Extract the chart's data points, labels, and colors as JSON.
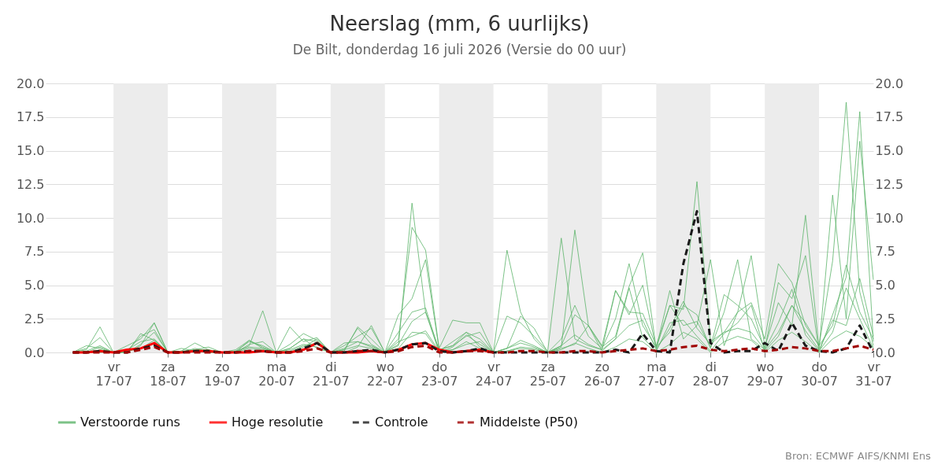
{
  "chart_data": {
    "type": "line",
    "title": "Neerslag (mm, 6 uurlijks)",
    "subtitle": "De Bilt, donderdag 16 juli 2026 (Versie do 00 uur)",
    "annotations": [
      "Bron: ECMWF AIFS/KNMI Ens"
    ],
    "x": [
      "2026-07-16T06:00",
      "2026-07-16T12:00",
      "2026-07-16T18:00",
      "2026-07-17T00:00",
      "2026-07-17T06:00",
      "2026-07-17T12:00",
      "2026-07-17T18:00",
      "2026-07-18T00:00",
      "2026-07-18T06:00",
      "2026-07-18T12:00",
      "2026-07-18T18:00",
      "2026-07-19T00:00",
      "2026-07-19T06:00",
      "2026-07-19T12:00",
      "2026-07-19T18:00",
      "2026-07-20T00:00",
      "2026-07-20T06:00",
      "2026-07-20T12:00",
      "2026-07-20T18:00",
      "2026-07-21T00:00",
      "2026-07-21T06:00",
      "2026-07-21T12:00",
      "2026-07-21T18:00",
      "2026-07-22T00:00",
      "2026-07-22T06:00",
      "2026-07-22T12:00",
      "2026-07-22T18:00",
      "2026-07-23T00:00",
      "2026-07-23T06:00",
      "2026-07-23T12:00",
      "2026-07-23T18:00",
      "2026-07-24T00:00",
      "2026-07-24T06:00",
      "2026-07-24T12:00",
      "2026-07-24T18:00",
      "2026-07-25T00:00",
      "2026-07-25T06:00",
      "2026-07-25T12:00",
      "2026-07-25T18:00",
      "2026-07-26T00:00",
      "2026-07-26T06:00",
      "2026-07-26T12:00",
      "2026-07-26T18:00",
      "2026-07-27T00:00",
      "2026-07-27T06:00",
      "2026-07-27T12:00",
      "2026-07-27T18:00",
      "2026-07-28T00:00",
      "2026-07-28T06:00",
      "2026-07-28T12:00",
      "2026-07-28T18:00",
      "2026-07-29T00:00",
      "2026-07-29T06:00",
      "2026-07-29T12:00",
      "2026-07-29T18:00",
      "2026-07-30T00:00",
      "2026-07-30T06:00",
      "2026-07-30T12:00",
      "2026-07-30T18:00",
      "2026-07-31T00:00"
    ],
    "series": [
      {
        "name": "Verstoorde runs",
        "color": "#5cb46a",
        "values": [
          0,
          0.2,
          1.9,
          0,
          0,
          0.5,
          2.2,
          0,
          0,
          0.3,
          0.1,
          0,
          0,
          0.5,
          3.1,
          0,
          0,
          0.4,
          1.0,
          0,
          0,
          0.4,
          2.0,
          0,
          0.5,
          11.1,
          3.0,
          0.2,
          0.5,
          1.5,
          0.4,
          0,
          0.3,
          2.7,
          1.8,
          0,
          1.0,
          3.5,
          1.2,
          0.3,
          2.5,
          6.6,
          2.0,
          0.4,
          1.5,
          3.5,
          2.8,
          0.3,
          3.0,
          6.9,
          1.0,
          0.2,
          1.5,
          3.5,
          2.2,
          0.5,
          6.8,
          18.6,
          4.5,
          0.5
        ]
      },
      {
        "color": "#5cb46a",
        "values": [
          0,
          0.5,
          0.3,
          0,
          0,
          1.4,
          0.9,
          0,
          0.1,
          0.7,
          0.2,
          0,
          0,
          0.9,
          0.4,
          0,
          1.9,
          0.8,
          1.1,
          0,
          0.1,
          1.9,
          1.0,
          0,
          1.0,
          9.3,
          7.6,
          0.3,
          2.4,
          2.2,
          2.2,
          0,
          2.7,
          2.2,
          1.2,
          0.1,
          8.5,
          1.0,
          0.5,
          0.2,
          4.6,
          3.0,
          2.9,
          0.5,
          3.5,
          2.0,
          2.3,
          0.4,
          4.3,
          3.5,
          2.5,
          0.3,
          5.2,
          4.0,
          7.2,
          0,
          2.8,
          5.6,
          17.9,
          0.8
        ]
      },
      {
        "color": "#5cb46a",
        "values": [
          0,
          0.1,
          0.5,
          0,
          0.1,
          1.2,
          1.7,
          0,
          0.1,
          0.2,
          0.4,
          0,
          0.1,
          0.8,
          0.5,
          0,
          0.3,
          1.0,
          0.8,
          0,
          0.2,
          1.8,
          0.6,
          0,
          2.8,
          4.0,
          6.9,
          0.2,
          0.5,
          1.2,
          1.5,
          0,
          0.3,
          0.9,
          0.5,
          0,
          0.4,
          9.1,
          2.0,
          0.4,
          1.2,
          4.9,
          7.4,
          0.3,
          3.5,
          3.2,
          12.7,
          0.8,
          1.5,
          3.0,
          7.2,
          0.4,
          3.7,
          2.0,
          10.2,
          0.3,
          11.7,
          2.5,
          15.7,
          5.4
        ]
      },
      {
        "color": "#5cb46a",
        "values": [
          0,
          0.3,
          1.1,
          0,
          0.5,
          1.0,
          2.2,
          0,
          0.3,
          0.1,
          0,
          0,
          0.2,
          0.9,
          0.3,
          0,
          0.6,
          1.4,
          0.9,
          0,
          0.5,
          1.2,
          1.8,
          0,
          1.5,
          3.0,
          3.3,
          0.1,
          0.8,
          1.5,
          1.0,
          0,
          7.6,
          3.0,
          1.0,
          0,
          0.5,
          2.8,
          2.0,
          0.5,
          4.6,
          2.8,
          5.0,
          0.3,
          4.6,
          1.0,
          2.0,
          6.9,
          0.5,
          3.0,
          3.7,
          1.0,
          6.6,
          5.2,
          2.0,
          0.5,
          2.0,
          6.5,
          3.0,
          1.0
        ]
      },
      {
        "color": "#5cb46a",
        "values": [
          0,
          0,
          0.4,
          0,
          0.2,
          0.8,
          1.0,
          0,
          0,
          0.2,
          0.2,
          0,
          0,
          0.3,
          0.2,
          0,
          0.2,
          0.6,
          0.4,
          0,
          0.3,
          0.8,
          0.5,
          0,
          0.8,
          1.2,
          1.6,
          0.1,
          0.2,
          0.6,
          0.8,
          0,
          0.3,
          0.7,
          0.4,
          0,
          0.5,
          1.3,
          0.6,
          0.2,
          1.0,
          2.0,
          2.4,
          0.2,
          1.8,
          3.8,
          1.8,
          0.6,
          1.5,
          1.8,
          1.5,
          0.2,
          2.2,
          4.7,
          1.3,
          0.1,
          1.5,
          4.8,
          2.5,
          0.3
        ]
      },
      {
        "color": "#5cb46a",
        "values": [
          0,
          0,
          0.2,
          0,
          0,
          0.6,
          1.5,
          0,
          0.1,
          0,
          0.1,
          0,
          0,
          0.6,
          0.8,
          0,
          0.3,
          1.0,
          0.3,
          0,
          0.7,
          0.8,
          0.4,
          0,
          0.6,
          2.3,
          3.0,
          0,
          0.4,
          1.3,
          0.6,
          0,
          0.1,
          0.4,
          0.3,
          0,
          0.3,
          0.6,
          2.0,
          0.1,
          1.0,
          4.8,
          1.1,
          0.1,
          2.2,
          2.4,
          1.2,
          0.1,
          1.4,
          2.2,
          3.5,
          0.1,
          1.2,
          3.5,
          1.6,
          0.2,
          2.4,
          2.0,
          5.5,
          1.2
        ]
      },
      {
        "color": "#5cb46a",
        "values": [
          0,
          0,
          0,
          0,
          0.1,
          0.3,
          0.9,
          0,
          0,
          0.1,
          0,
          0,
          0.1,
          0.4,
          0.3,
          0,
          0.1,
          0.5,
          0.7,
          0,
          0.2,
          0.5,
          0.3,
          0,
          0.3,
          1.5,
          1.4,
          0,
          0.2,
          0.8,
          0.3,
          0,
          0.1,
          0.3,
          0.2,
          0,
          0.2,
          0.7,
          0.3,
          0,
          0.4,
          1.0,
          0.8,
          0,
          0.6,
          1.5,
          1.0,
          0,
          0.8,
          1.2,
          0.9,
          0,
          0.9,
          1.5,
          0.8,
          0,
          1.0,
          1.6,
          1.2,
          0.4
        ]
      },
      {
        "name": "Hoge resolutie",
        "color": "#ff0000",
        "values": [
          0,
          0,
          0.1,
          0,
          0.2,
          0.3,
          0.7,
          0,
          0,
          0.1,
          0.1,
          0,
          0,
          0,
          0.1,
          0,
          0,
          0.2,
          0.7,
          0,
          0,
          0,
          0.1,
          0,
          0.2,
          0.6,
          0.7,
          0.2,
          0,
          0.1,
          0.2,
          0,
          null,
          null,
          null,
          null,
          null,
          null,
          null,
          null,
          null,
          null,
          null,
          null,
          null,
          null,
          null,
          null,
          null,
          null,
          null,
          null,
          null,
          null,
          null,
          null,
          null,
          null,
          null,
          null
        ]
      },
      {
        "name": "Controle",
        "color": "#1a1a1a",
        "line_style": "dashed",
        "values": [
          0,
          0,
          0.1,
          0,
          0,
          0.3,
          0.5,
          0,
          0,
          0.1,
          0.1,
          0,
          0,
          0.1,
          0.1,
          0,
          0,
          0.3,
          0.7,
          0,
          0,
          0.1,
          0.2,
          0,
          0.2,
          0.6,
          0.7,
          0.1,
          0,
          0.1,
          0.3,
          0,
          0,
          0,
          0,
          0,
          0,
          0,
          0,
          0,
          0.2,
          0,
          1.4,
          0.1,
          0,
          6.6,
          10.5,
          0.7,
          0,
          0.1,
          0.1,
          0.7,
          0.1,
          2.2,
          0.5,
          0.1,
          0,
          0.3,
          2.0,
          0
        ]
      },
      {
        "name": "Middelste (P50)",
        "color": "#a00000",
        "line_style": "dashed",
        "values": [
          0,
          0,
          0,
          0,
          0,
          0.2,
          0.4,
          0,
          0,
          0,
          0,
          0,
          0,
          0.1,
          0.1,
          0,
          0,
          0.1,
          0.3,
          0,
          0,
          0.1,
          0.1,
          0,
          0.1,
          0.4,
          0.5,
          0,
          0,
          0.1,
          0.1,
          0,
          0,
          0.1,
          0.1,
          0,
          0,
          0.1,
          0.1,
          0,
          0.1,
          0.2,
          0.3,
          0.1,
          0.2,
          0.4,
          0.5,
          0.2,
          0.1,
          0.2,
          0.3,
          0.1,
          0.2,
          0.4,
          0.3,
          0.1,
          0.1,
          0.3,
          0.5,
          0.2
        ]
      }
    ],
    "xlim": [
      "2026-07-15T18:00",
      "2026-07-31T00:00"
    ],
    "xticks": [
      {
        "value": "2026-07-17",
        "label": "vr\n17-07"
      },
      {
        "value": "2026-07-18",
        "label": "za\n18-07"
      },
      {
        "value": "2026-07-19",
        "label": "zo\n19-07"
      },
      {
        "value": "2026-07-20",
        "label": "ma\n20-07"
      },
      {
        "value": "2026-07-21",
        "label": "di\n21-07"
      },
      {
        "value": "2026-07-22",
        "label": "wo\n22-07"
      },
      {
        "value": "2026-07-23",
        "label": "do\n23-07"
      },
      {
        "value": "2026-07-24",
        "label": "vr\n24-07"
      },
      {
        "value": "2026-07-25",
        "label": "za\n25-07"
      },
      {
        "value": "2026-07-26",
        "label": "zo\n26-07"
      },
      {
        "value": "2026-07-27",
        "label": "ma\n27-07"
      },
      {
        "value": "2026-07-28",
        "label": "di\n28-07"
      },
      {
        "value": "2026-07-29",
        "label": "wo\n29-07"
      },
      {
        "value": "2026-07-30",
        "label": "do\n30-07"
      },
      {
        "value": "2026-07-31",
        "label": "vr\n31-07"
      }
    ],
    "ylim": [
      0,
      20
    ],
    "yticks": [
      {
        "value": 0,
        "label": "0.0"
      },
      {
        "value": 2.5,
        "label": "2.5"
      },
      {
        "value": 5,
        "label": "5.0"
      },
      {
        "value": 7.5,
        "label": "7.5"
      },
      {
        "value": 10,
        "label": "10.0"
      },
      {
        "value": 12.5,
        "label": "12.5"
      },
      {
        "value": 15,
        "label": "15.0"
      },
      {
        "value": 17.5,
        "label": "17.5"
      },
      {
        "value": 20,
        "label": "20.0"
      }
    ],
    "y2lim": [
      0,
      20
    ],
    "y2ticks": [
      {
        "value": 0,
        "label": "0.0"
      },
      {
        "value": 2.5,
        "label": "2.5"
      },
      {
        "value": 5,
        "label": "5.0"
      },
      {
        "value": 7.5,
        "label": "7.5"
      },
      {
        "value": 10,
        "label": "10.0"
      },
      {
        "value": 12.5,
        "label": "12.5"
      },
      {
        "value": 15,
        "label": "15.0"
      },
      {
        "value": 17.5,
        "label": "17.5"
      },
      {
        "value": 20,
        "label": "20.0"
      }
    ],
    "bands": [
      {
        "axis": "x",
        "from": "2026-07-17",
        "to": "2026-07-18",
        "color": "#ececec"
      },
      {
        "axis": "x",
        "from": "2026-07-19",
        "to": "2026-07-20",
        "color": "#ececec"
      },
      {
        "axis": "x",
        "from": "2026-07-21",
        "to": "2026-07-22",
        "color": "#ececec"
      },
      {
        "axis": "x",
        "from": "2026-07-23",
        "to": "2026-07-24",
        "color": "#ececec"
      },
      {
        "axis": "x",
        "from": "2026-07-25",
        "to": "2026-07-26",
        "color": "#ececec"
      },
      {
        "axis": "x",
        "from": "2026-07-27",
        "to": "2026-07-28",
        "color": "#ececec"
      },
      {
        "axis": "x",
        "from": "2026-07-29",
        "to": "2026-07-30",
        "color": "#ececec"
      }
    ],
    "grid": "y",
    "legend": "bottom",
    "marker": "none"
  }
}
